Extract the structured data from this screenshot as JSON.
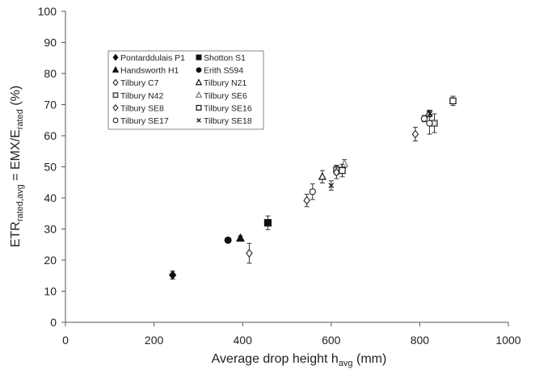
{
  "chart_data": {
    "type": "scatter",
    "xlabel": {
      "base": "Average drop height h",
      "sub": "avg",
      "tail": " (mm)"
    },
    "ylabel": {
      "base": "ETR",
      "sub": "rated,avg",
      "mid": " = EMX/E",
      "sub2": "rated",
      "tail": " (%)"
    },
    "xlim": [
      0,
      1000
    ],
    "ylim": [
      0,
      100
    ],
    "x_ticks": [
      0,
      200,
      400,
      600,
      800,
      1000
    ],
    "y_ticks": [
      0,
      10,
      20,
      30,
      40,
      50,
      60,
      70,
      80,
      90,
      100
    ],
    "grid": false,
    "legend_position": "upper-left",
    "series": [
      {
        "name": "Pontarddulais P1",
        "marker": "diamond-filled",
        "points": [
          {
            "x": 242,
            "y": 15.2,
            "err": 1.3
          }
        ]
      },
      {
        "name": "Shotton S1",
        "marker": "square-filled",
        "points": [
          {
            "x": 457,
            "y": 32,
            "err": 2.2
          }
        ]
      },
      {
        "name": "Handsworth H1",
        "marker": "triangle-filled",
        "points": [
          {
            "x": 395,
            "y": 27,
            "err": 0.8
          }
        ]
      },
      {
        "name": "Erith S594",
        "marker": "circle-filled",
        "points": [
          {
            "x": 367,
            "y": 26.4,
            "err": 0.8
          }
        ]
      },
      {
        "name": "Tilbury C7",
        "marker": "diamond-open",
        "points": [
          {
            "x": 415,
            "y": 22.2,
            "err": 3.2
          }
        ]
      },
      {
        "name": "Tilbury N21",
        "marker": "triangle-open",
        "points": [
          {
            "x": 580,
            "y": 46.8,
            "err": 2.0
          },
          {
            "x": 820,
            "y": 67,
            "err": 1.0
          }
        ]
      },
      {
        "name": "Tilbury N42",
        "marker": "square-grey",
        "points": [
          {
            "x": 612,
            "y": 49,
            "err": 1.5
          },
          {
            "x": 833,
            "y": 64,
            "err": 3.0
          }
        ]
      },
      {
        "name": "Tilbury SE6",
        "marker": "triangle-grey",
        "points": [
          {
            "x": 630,
            "y": 51,
            "err": 1.3
          }
        ]
      },
      {
        "name": "Tilbury SE8",
        "marker": "diamond-open",
        "points": [
          {
            "x": 545,
            "y": 39.2,
            "err": 2.0
          },
          {
            "x": 612,
            "y": 48.2,
            "err": 2.0
          },
          {
            "x": 790,
            "y": 60.5,
            "err": 2.2
          }
        ]
      },
      {
        "name": "Tilbury SE16",
        "marker": "square-open",
        "points": [
          {
            "x": 625,
            "y": 48.8,
            "err": 2.0
          },
          {
            "x": 875,
            "y": 71.2,
            "err": 1.5
          }
        ]
      },
      {
        "name": "Tilbury SE17",
        "marker": "circle-open",
        "points": [
          {
            "x": 558,
            "y": 42,
            "err": 2.5
          },
          {
            "x": 810,
            "y": 65.5,
            "err": 1.0
          },
          {
            "x": 822,
            "y": 64,
            "err": 3.5
          }
        ]
      },
      {
        "name": "Tilbury SE18",
        "marker": "cross",
        "points": [
          {
            "x": 600,
            "y": 44,
            "err": 1.5
          },
          {
            "x": 823,
            "y": 67.2,
            "err": 1.0
          }
        ]
      }
    ]
  }
}
